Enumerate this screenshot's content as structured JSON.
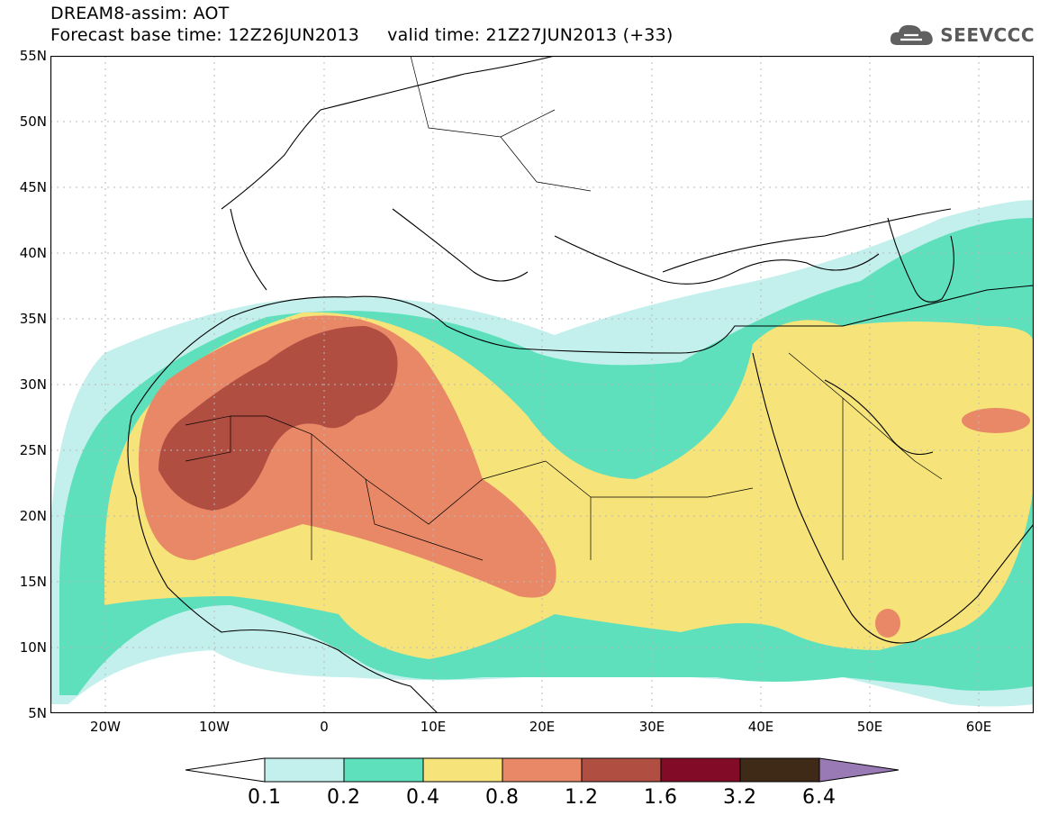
{
  "header": {
    "title_line1": "DREAM8-assim: AOT",
    "title_line2": "Forecast base time: 12Z26JUN2013     valid time: 21Z27JUN2013 (+33)",
    "logo_text": "SEEVCCC"
  },
  "map": {
    "lat_labels": [
      "55N",
      "50N",
      "45N",
      "40N",
      "35N",
      "30N",
      "25N",
      "20N",
      "15N",
      "10N",
      "5N"
    ],
    "lon_labels": [
      "20W",
      "10W",
      "0",
      "10E",
      "20E",
      "30E",
      "40E",
      "50E",
      "60E"
    ]
  },
  "colorbar": {
    "levels": [
      "0.1",
      "0.2",
      "0.4",
      "0.8",
      "1.2",
      "1.6",
      "3.2",
      "6.4"
    ],
    "colors": [
      "#c3f0ec",
      "#5ee0bc",
      "#f6e47a",
      "#e88866",
      "#b04e42",
      "#820c28",
      "#3f2a18",
      "#9a7ab4"
    ]
  }
}
